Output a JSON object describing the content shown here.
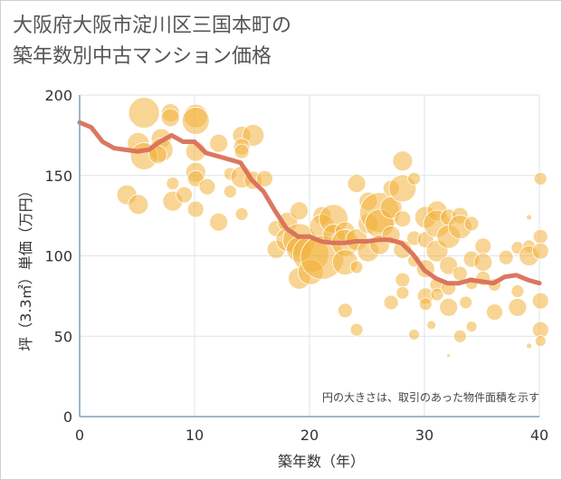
{
  "title_lines": [
    "大阪府大阪市淀川区三国本町の",
    "築年数別中古マンション価格"
  ],
  "note": "円の大きさは、取引のあった物件面積を示す",
  "colors": {
    "bubble": "#f2b33d",
    "line": "#d9705a",
    "grid": "#dde3e8",
    "axis": "#7aa0b8"
  },
  "chart_data": {
    "type": "scatter",
    "title": "大阪府大阪市淀川区三国本町の築年数別中古マンション価格",
    "xlabel": "築年数（年）",
    "ylabel": "坪（3.3㎡）単価（万円）",
    "xlim": [
      0,
      40
    ],
    "ylim": [
      0,
      200
    ],
    "xticks": [
      0,
      10,
      20,
      30,
      40
    ],
    "yticks": [
      0,
      50,
      100,
      150,
      200
    ],
    "grid": true,
    "trend": {
      "name": "",
      "x": [
        0,
        1,
        2,
        3,
        4,
        5,
        6,
        7,
        8,
        9,
        10,
        11,
        12,
        13,
        14,
        15,
        16,
        17,
        18,
        19,
        20,
        21,
        22,
        23,
        24,
        25,
        26,
        27,
        28,
        29,
        30,
        31,
        32,
        33,
        34,
        35,
        36,
        37,
        38,
        39,
        40
      ],
      "y": [
        183,
        180,
        171,
        167,
        166,
        165,
        166,
        171,
        175,
        171,
        171,
        164,
        162,
        160,
        158,
        147,
        140,
        128,
        117,
        112,
        112,
        109,
        108,
        108,
        109,
        109,
        110,
        110,
        108,
        101,
        91,
        86,
        83,
        83,
        85,
        84,
        83,
        87,
        88,
        85,
        83
      ]
    },
    "points": [
      {
        "x": 5.6,
        "y": 189,
        "s": 17
      },
      {
        "x": 7.9,
        "y": 189,
        "s": 10
      },
      {
        "x": 7.9,
        "y": 186,
        "s": 10
      },
      {
        "x": 10.1,
        "y": 187,
        "s": 13
      },
      {
        "x": 10.1,
        "y": 184,
        "s": 15
      },
      {
        "x": 5.1,
        "y": 170,
        "s": 12
      },
      {
        "x": 7.1,
        "y": 173,
        "s": 11
      },
      {
        "x": 7.1,
        "y": 166,
        "s": 13
      },
      {
        "x": 5.6,
        "y": 162,
        "s": 15
      },
      {
        "x": 6.8,
        "y": 163,
        "s": 10
      },
      {
        "x": 10.1,
        "y": 165,
        "s": 11
      },
      {
        "x": 12.1,
        "y": 170,
        "s": 10
      },
      {
        "x": 14.1,
        "y": 175,
        "s": 10
      },
      {
        "x": 15.1,
        "y": 175,
        "s": 12
      },
      {
        "x": 14.1,
        "y": 168,
        "s": 9
      },
      {
        "x": 14.1,
        "y": 165,
        "s": 8
      },
      {
        "x": 10.1,
        "y": 152,
        "s": 11
      },
      {
        "x": 10.1,
        "y": 148,
        "s": 9
      },
      {
        "x": 13.1,
        "y": 151,
        "s": 7
      },
      {
        "x": 14.1,
        "y": 149,
        "s": 12
      },
      {
        "x": 15.1,
        "y": 147,
        "s": 10
      },
      {
        "x": 16.1,
        "y": 148,
        "s": 9
      },
      {
        "x": 11.1,
        "y": 143,
        "s": 9
      },
      {
        "x": 8.1,
        "y": 145,
        "s": 7
      },
      {
        "x": 4.1,
        "y": 138,
        "s": 11
      },
      {
        "x": 5.1,
        "y": 132,
        "s": 11
      },
      {
        "x": 8.1,
        "y": 134,
        "s": 11
      },
      {
        "x": 9.1,
        "y": 138,
        "s": 9
      },
      {
        "x": 13.1,
        "y": 140,
        "s": 7
      },
      {
        "x": 10.1,
        "y": 129,
        "s": 9
      },
      {
        "x": 12.1,
        "y": 121,
        "s": 10
      },
      {
        "x": 14.1,
        "y": 126,
        "s": 7
      },
      {
        "x": 17.1,
        "y": 117,
        "s": 9
      },
      {
        "x": 17.1,
        "y": 104,
        "s": 10
      },
      {
        "x": 18.1,
        "y": 121,
        "s": 11
      },
      {
        "x": 18.1,
        "y": 110,
        "s": 13
      },
      {
        "x": 19.1,
        "y": 128,
        "s": 10
      },
      {
        "x": 19.1,
        "y": 110,
        "s": 18
      },
      {
        "x": 19.1,
        "y": 104,
        "s": 14
      },
      {
        "x": 19.1,
        "y": 86,
        "s": 12
      },
      {
        "x": 20.1,
        "y": 101,
        "s": 20
      },
      {
        "x": 20.1,
        "y": 90,
        "s": 14
      },
      {
        "x": 21.1,
        "y": 125,
        "s": 10
      },
      {
        "x": 21.1,
        "y": 118,
        "s": 14
      },
      {
        "x": 21.1,
        "y": 99,
        "s": 24
      },
      {
        "x": 22.1,
        "y": 123,
        "s": 16
      },
      {
        "x": 22.1,
        "y": 113,
        "s": 12
      },
      {
        "x": 23.1,
        "y": 115,
        "s": 11
      },
      {
        "x": 23.1,
        "y": 108,
        "s": 15
      },
      {
        "x": 23.1,
        "y": 96,
        "s": 14
      },
      {
        "x": 24.1,
        "y": 110,
        "s": 12
      },
      {
        "x": 24.1,
        "y": 145,
        "s": 10
      },
      {
        "x": 24.1,
        "y": 93,
        "s": 7
      },
      {
        "x": 25.1,
        "y": 134,
        "s": 10
      },
      {
        "x": 25.1,
        "y": 120,
        "s": 11
      },
      {
        "x": 25.1,
        "y": 103,
        "s": 12
      },
      {
        "x": 26.1,
        "y": 127,
        "s": 22
      },
      {
        "x": 26.1,
        "y": 120,
        "s": 16
      },
      {
        "x": 26.1,
        "y": 107,
        "s": 11
      },
      {
        "x": 27.1,
        "y": 142,
        "s": 9
      },
      {
        "x": 27.1,
        "y": 130,
        "s": 12
      },
      {
        "x": 27.1,
        "y": 113,
        "s": 10
      },
      {
        "x": 28.1,
        "y": 159,
        "s": 11
      },
      {
        "x": 28.1,
        "y": 142,
        "s": 15
      },
      {
        "x": 28.1,
        "y": 123,
        "s": 9
      },
      {
        "x": 28.1,
        "y": 104,
        "s": 10
      },
      {
        "x": 28.1,
        "y": 85,
        "s": 8
      },
      {
        "x": 28.1,
        "y": 77,
        "s": 7
      },
      {
        "x": 29.1,
        "y": 148,
        "s": 7
      },
      {
        "x": 29.1,
        "y": 111,
        "s": 8
      },
      {
        "x": 29.1,
        "y": 97,
        "s": 7
      },
      {
        "x": 30.1,
        "y": 124,
        "s": 12
      },
      {
        "x": 30.1,
        "y": 110,
        "s": 9
      },
      {
        "x": 30.1,
        "y": 92,
        "s": 10
      },
      {
        "x": 30.1,
        "y": 75,
        "s": 9
      },
      {
        "x": 30.1,
        "y": 70,
        "s": 7
      },
      {
        "x": 31.1,
        "y": 128,
        "s": 11
      },
      {
        "x": 31.1,
        "y": 120,
        "s": 15
      },
      {
        "x": 31.1,
        "y": 103,
        "s": 12
      },
      {
        "x": 31.1,
        "y": 82,
        "s": 8
      },
      {
        "x": 31.1,
        "y": 76,
        "s": 7
      },
      {
        "x": 32.1,
        "y": 124,
        "s": 9
      },
      {
        "x": 32.1,
        "y": 112,
        "s": 13
      },
      {
        "x": 32.1,
        "y": 94,
        "s": 10
      },
      {
        "x": 32.1,
        "y": 80,
        "s": 8
      },
      {
        "x": 32.1,
        "y": 68,
        "s": 10
      },
      {
        "x": 33.1,
        "y": 125,
        "s": 9
      },
      {
        "x": 33.1,
        "y": 118,
        "s": 13
      },
      {
        "x": 33.1,
        "y": 89,
        "s": 8
      },
      {
        "x": 34.1,
        "y": 120,
        "s": 8
      },
      {
        "x": 34.1,
        "y": 98,
        "s": 9
      },
      {
        "x": 34.1,
        "y": 83,
        "s": 7
      },
      {
        "x": 35.1,
        "y": 106,
        "s": 9
      },
      {
        "x": 35.1,
        "y": 96,
        "s": 10
      },
      {
        "x": 35.1,
        "y": 86,
        "s": 8
      },
      {
        "x": 36.1,
        "y": 82,
        "s": 7
      },
      {
        "x": 36.1,
        "y": 65,
        "s": 9
      },
      {
        "x": 37.1,
        "y": 99,
        "s": 8
      },
      {
        "x": 38.1,
        "y": 105,
        "s": 7
      },
      {
        "x": 38.1,
        "y": 78,
        "s": 7
      },
      {
        "x": 38.1,
        "y": 68,
        "s": 10
      },
      {
        "x": 39.1,
        "y": 124,
        "s": 3
      },
      {
        "x": 39.1,
        "y": 106,
        "s": 7
      },
      {
        "x": 39.1,
        "y": 100,
        "s": 11
      },
      {
        "x": 39.1,
        "y": 44,
        "s": 3
      },
      {
        "x": 40.1,
        "y": 148,
        "s": 7
      },
      {
        "x": 40.1,
        "y": 112,
        "s": 8
      },
      {
        "x": 40.1,
        "y": 103,
        "s": 9
      },
      {
        "x": 40.1,
        "y": 72,
        "s": 9
      },
      {
        "x": 40.1,
        "y": 54,
        "s": 9
      },
      {
        "x": 40.1,
        "y": 47,
        "s": 6
      },
      {
        "x": 29.1,
        "y": 51,
        "s": 6
      },
      {
        "x": 30.6,
        "y": 57,
        "s": 5
      },
      {
        "x": 23.1,
        "y": 66,
        "s": 8
      },
      {
        "x": 24.1,
        "y": 54,
        "s": 7
      },
      {
        "x": 33.1,
        "y": 50,
        "s": 7
      },
      {
        "x": 34.1,
        "y": 56,
        "s": 6
      },
      {
        "x": 32.1,
        "y": 38,
        "s": 2
      },
      {
        "x": 27.1,
        "y": 71,
        "s": 8
      },
      {
        "x": 33.6,
        "y": 71,
        "s": 7
      }
    ]
  }
}
